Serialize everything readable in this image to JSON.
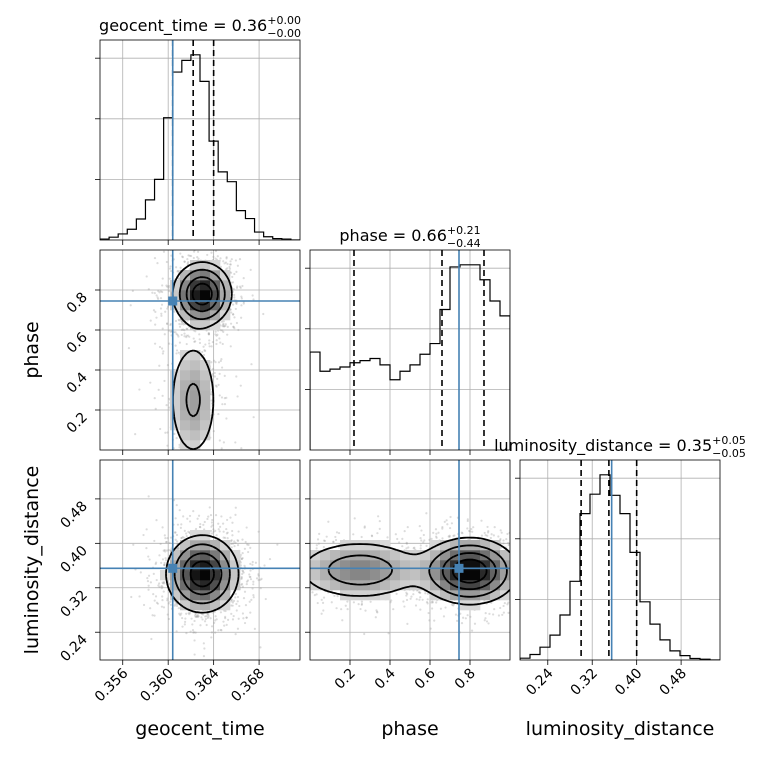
{
  "chart_data": {
    "type": "corner",
    "parameters": [
      "geocent_time",
      "phase",
      "luminosity_distance"
    ],
    "truths": {
      "geocent_time": 0.3604,
      "phase": 0.745,
      "luminosity_distance": 0.355
    },
    "ranges": {
      "geocent_time": [
        0.354,
        0.3716
      ],
      "phase": [
        0.0,
        1.0
      ],
      "luminosity_distance": [
        0.19,
        0.55
      ]
    },
    "ticks": {
      "geocent_time": {
        "values": [
          0.356,
          0.36,
          0.364,
          0.368
        ],
        "labels": [
          "0.356",
          "0.360",
          "0.364",
          "0.368"
        ]
      },
      "phase": {
        "values": [
          0.2,
          0.4,
          0.6,
          0.8
        ],
        "labels": [
          "0.2",
          "0.4",
          "0.6",
          "0.8"
        ]
      },
      "luminosity_distance": {
        "values": [
          0.24,
          0.32,
          0.4,
          0.48
        ],
        "labels": [
          "0.24",
          "0.32",
          "0.40",
          "0.48"
        ]
      }
    },
    "titles": {
      "geocent_time": {
        "text": "geocent_time = 0.36",
        "plus": "+0.00",
        "minus": "−0.00"
      },
      "phase": {
        "text": "phase = 0.66",
        "plus": "+0.21",
        "minus": "−0.44"
      },
      "luminosity_distance": {
        "text": "luminosity_distance = 0.35",
        "plus": "+0.05",
        "minus": "−0.05"
      }
    },
    "quantiles": {
      "geocent_time": [
        0.3604,
        0.3622,
        0.364
      ],
      "phase": [
        0.22,
        0.66,
        0.87
      ],
      "luminosity_distance": [
        0.3,
        0.35,
        0.4
      ]
    },
    "histograms": {
      "geocent_time": {
        "edges": [
          0.354,
          0.3548,
          0.3556,
          0.3564,
          0.3572,
          0.358,
          0.3588,
          0.3596,
          0.3604,
          0.3612,
          0.362,
          0.3628,
          0.3636,
          0.3644,
          0.3652,
          0.366,
          0.3668,
          0.3676,
          0.3684,
          0.3692,
          0.37,
          0.3708,
          0.3716
        ],
        "counts": [
          0.2,
          0.6,
          1.3,
          2.3,
          4.5,
          8.6,
          13.0,
          26.2,
          36.0,
          38.5,
          39.7,
          34.0,
          21.2,
          14.6,
          12.5,
          6.3,
          4.6,
          1.7,
          0.7,
          0.3,
          0.2,
          0.0
        ]
      },
      "phase": {
        "edges": [
          0.0,
          0.05,
          0.1,
          0.15,
          0.2,
          0.25,
          0.3,
          0.35,
          0.4,
          0.45,
          0.5,
          0.55,
          0.6,
          0.65,
          0.7,
          0.75,
          0.8,
          0.85,
          0.9,
          0.95,
          1.0
        ],
        "counts": [
          46,
          37,
          38,
          39,
          41,
          42,
          43,
          40,
          33,
          37,
          40,
          45,
          50,
          66,
          86,
          87,
          87,
          80,
          70,
          63
        ]
      },
      "luminosity_distance": {
        "edges": [
          0.19,
          0.208,
          0.226,
          0.244,
          0.262,
          0.28,
          0.298,
          0.316,
          0.334,
          0.352,
          0.37,
          0.388,
          0.406,
          0.424,
          0.442,
          0.46,
          0.478,
          0.496,
          0.514,
          0.532,
          0.55
        ],
        "counts": [
          0.5,
          1.5,
          3.5,
          6.8,
          12.3,
          21.5,
          40.0,
          45.3,
          50.6,
          45.0,
          40.0,
          29.4,
          15.9,
          9.8,
          5.5,
          2.5,
          1.2,
          0.4,
          0.2,
          0.0
        ]
      }
    },
    "hist2d": {
      "phase_vs_geocent_time": {
        "x": "geocent_time",
        "y": "phase",
        "centers": [
          {
            "x": 0.363,
            "y": 0.78,
            "sx": 0.0013,
            "sy": 0.08,
            "w": 1.0
          },
          {
            "x": 0.3622,
            "y": 0.25,
            "sx": 0.0013,
            "sy": 0.18,
            "w": 0.35
          }
        ]
      },
      "luminosity_distance_vs_geocent_time": {
        "x": "geocent_time",
        "y": "luminosity_distance",
        "centers": [
          {
            "x": 0.363,
            "y": 0.345,
            "sx": 0.0016,
            "sy": 0.035,
            "w": 1.0
          }
        ]
      },
      "luminosity_distance_vs_phase": {
        "x": "phase",
        "y": "luminosity_distance",
        "centers": [
          {
            "x": 0.8,
            "y": 0.35,
            "sx": 0.12,
            "sy": 0.03,
            "w": 1.0
          },
          {
            "x": 0.25,
            "y": 0.352,
            "sx": 0.18,
            "sy": 0.03,
            "w": 0.45
          }
        ]
      }
    }
  }
}
